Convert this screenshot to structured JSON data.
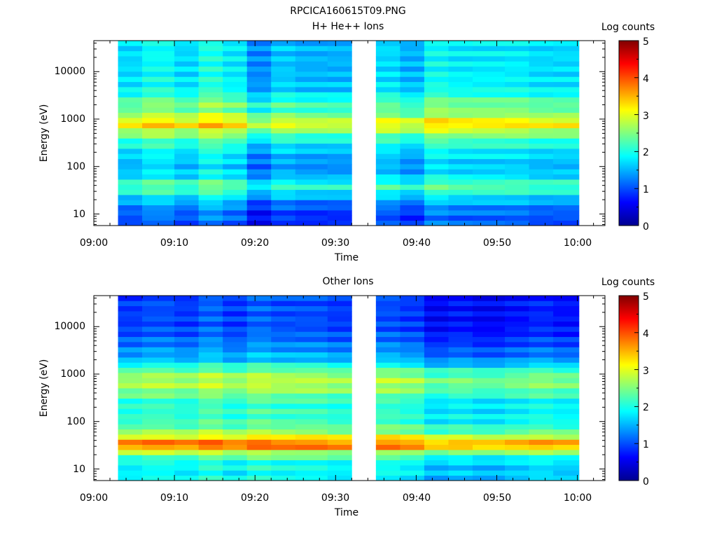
{
  "figure": {
    "title": "RPCICA160615T09.PNG"
  },
  "colorscale": {
    "stops": [
      "#00008f",
      "#0000ff",
      "#0080ff",
      "#00ffff",
      "#80ff80",
      "#ffff00",
      "#ff8000",
      "#ff0000",
      "#800000"
    ]
  },
  "chart_data": [
    {
      "type": "heatmap",
      "title": "H+ He++ Ions",
      "xlabel": "Time",
      "ylabel": "Energy (eV)",
      "xticks": [
        "09:00",
        "09:10",
        "09:20",
        "09:30",
        "09:40",
        "09:50",
        "10:00"
      ],
      "yticks": [
        "10",
        "100",
        "1000",
        "10000"
      ],
      "yscale": "log",
      "colorbar": {
        "label": "Log counts",
        "ticks": [
          "0",
          "1",
          "2",
          "3",
          "4",
          "5"
        ],
        "range": [
          0,
          5
        ]
      },
      "data_gap": [
        "09:32",
        "09:35"
      ],
      "time_bins": [
        "09:03",
        "09:06",
        "09:10",
        "09:13",
        "09:16",
        "09:19",
        "09:22",
        "09:25",
        "09:29",
        "09:35",
        "09:38",
        "09:41",
        "09:44",
        "09:47",
        "09:51",
        "09:54",
        "09:57"
      ],
      "spectrum": [
        {
          "energy_ev": 8,
          "log_counts": 1.0
        },
        {
          "energy_ev": 12,
          "log_counts": 1.1
        },
        {
          "energy_ev": 20,
          "log_counts": 1.5
        },
        {
          "energy_ev": 30,
          "log_counts": 2.0
        },
        {
          "energy_ev": 40,
          "log_counts": 2.3
        },
        {
          "energy_ev": 60,
          "log_counts": 1.7
        },
        {
          "energy_ev": 100,
          "log_counts": 1.5
        },
        {
          "energy_ev": 200,
          "log_counts": 1.7
        },
        {
          "energy_ev": 400,
          "log_counts": 2.2
        },
        {
          "energy_ev": 600,
          "log_counts": 2.8
        },
        {
          "energy_ev": 800,
          "log_counts": 3.3
        },
        {
          "energy_ev": 1000,
          "log_counts": 2.9
        },
        {
          "energy_ev": 1500,
          "log_counts": 2.3
        },
        {
          "energy_ev": 2000,
          "log_counts": 2.4
        },
        {
          "energy_ev": 4000,
          "log_counts": 1.8
        },
        {
          "energy_ev": 10000,
          "log_counts": 1.7
        },
        {
          "energy_ev": 40000,
          "log_counts": 1.7
        }
      ],
      "bin_offsets": [
        0.0,
        0.2,
        0.0,
        0.3,
        0.1,
        -0.4,
        -0.1,
        -0.2,
        -0.2,
        0.0,
        -0.2,
        0.2,
        0.1,
        0.1,
        0.1,
        0.0,
        0.0
      ]
    },
    {
      "type": "heatmap",
      "title": "Other Ions",
      "xlabel": "Time",
      "ylabel": "Energy (eV)",
      "xticks": [
        "09:00",
        "09:10",
        "09:20",
        "09:30",
        "09:40",
        "09:50",
        "10:00"
      ],
      "yticks": [
        "10",
        "100",
        "1000",
        "10000"
      ],
      "yscale": "log",
      "colorbar": {
        "label": "Log counts",
        "ticks": [
          "0",
          "1",
          "2",
          "3",
          "4",
          "5"
        ],
        "range": [
          0,
          5
        ]
      },
      "data_gap": [
        "09:32",
        "09:35"
      ],
      "time_bins": [
        "09:03",
        "09:06",
        "09:10",
        "09:13",
        "09:16",
        "09:19",
        "09:22",
        "09:25",
        "09:29",
        "09:35",
        "09:38",
        "09:41",
        "09:44",
        "09:47",
        "09:51",
        "09:54",
        "09:57"
      ],
      "spectrum": [
        {
          "energy_ev": 8,
          "log_counts": 1.8
        },
        {
          "energy_ev": 15,
          "log_counts": 1.9
        },
        {
          "energy_ev": 22,
          "log_counts": 2.6
        },
        {
          "energy_ev": 30,
          "log_counts": 3.8
        },
        {
          "energy_ev": 40,
          "log_counts": 3.6
        },
        {
          "energy_ev": 55,
          "log_counts": 2.6
        },
        {
          "energy_ev": 100,
          "log_counts": 2.1
        },
        {
          "energy_ev": 250,
          "log_counts": 2.0
        },
        {
          "energy_ev": 500,
          "log_counts": 2.6
        },
        {
          "energy_ev": 800,
          "log_counts": 2.7
        },
        {
          "energy_ev": 1200,
          "log_counts": 2.3
        },
        {
          "energy_ev": 2000,
          "log_counts": 1.5
        },
        {
          "energy_ev": 5000,
          "log_counts": 1.1
        },
        {
          "energy_ev": 10000,
          "log_counts": 0.9
        },
        {
          "energy_ev": 40000,
          "log_counts": 0.9
        }
      ],
      "bin_offsets": [
        0.0,
        0.1,
        0.0,
        0.2,
        0.0,
        0.2,
        0.1,
        0.1,
        0.0,
        0.1,
        0.0,
        -0.3,
        -0.2,
        -0.3,
        -0.2,
        -0.1,
        -0.2
      ]
    }
  ]
}
